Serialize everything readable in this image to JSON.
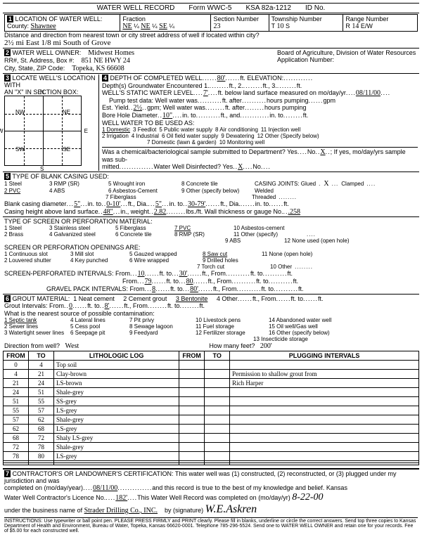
{
  "header": {
    "title": "WATER WELL RECORD",
    "form": "Form WWC-5",
    "ksa": "KSA 82a-1212",
    "idno": "ID No."
  },
  "loc": {
    "label": "LOCATION OF WATER WELL:",
    "county_lbl": "County:",
    "county": "Shawnee",
    "fraction": "Fraction",
    "f1": "NE",
    "f2": "¼",
    "f3": "NE",
    "f4": "¼",
    "f5": "SE",
    "f6": "¼",
    "sec_lbl": "Section Number",
    "sec": "23",
    "twp_lbl": "Township Number",
    "twp_t": "T",
    "twp": "10",
    "twp_s": "S",
    "rng_lbl": "Range Number",
    "rng_r": "R",
    "rng": "14",
    "rng_ew": "E/W",
    "dist_lbl": "Distance and direction from nearest town or city street address of well if located within city?",
    "dist": "2½ mi East 1/8 mi South of Grove"
  },
  "owner": {
    "label": "WATER WELL OWNER:",
    "name": "Midwest Homes",
    "addr_lbl": "RR#, St. Address, Box #:",
    "addr": "851 NE HWY 24",
    "city_lbl": "City, State, ZIP Code:",
    "city": "Topeka, KS 66608",
    "board": "Board of Agriculture, Division of Water Resources",
    "appno": "Application Number:"
  },
  "locate": {
    "label": "LOCATE WELL'S LOCATION WITH",
    "sub": "AN \"X\" IN SECTION BOX:",
    "n": "N",
    "s": "S",
    "e": "E",
    "w": "W",
    "nw": "NW",
    "ne": "NE",
    "sw": "SW",
    "se": "SE",
    "mile": "1 Mile"
  },
  "depth": {
    "label": "DEPTH OF COMPLETED WELL",
    "val": "80'",
    "elev": "ELEVATION:",
    "enc": "Depth(s) Groundwater Encountered",
    "d1": "1.",
    "d2": "2.",
    "d3": "3.",
    "swl": "WELL'S STATIC WATER LEVEL",
    "swl_v": "7'",
    "swl_t": "ft. below land surface measured on mo/day/yr",
    "swl_d": "08/11/00",
    "pump": "Pump test data: Well water was",
    "hrs": "hours pumping",
    "gpm": "gpm",
    "est": "Est. Yield",
    "est_v": "2½",
    "est_u": "gpm; Well water was",
    "bore": "Bore Hole Diameter",
    "bore_v": "10\"",
    "into": "in. to",
    "use": "WELL WATER TO BE USED AS:",
    "u1": "1 Domestic",
    "u2": "2 Irrigation",
    "u3": "3 Feedlot",
    "u4": "4 Industrial",
    "u5": "5 Public water supply",
    "u6": "6 Oil field water supply",
    "u7": "7 Domestic (lawn & garden)",
    "u8": "8 Air conditioning",
    "u9": "9 Dewatering",
    "u10": "10 Monitoring well",
    "u11": "11 Injection well",
    "u12": "12 Other (Specify below)",
    "chem": "Was a chemical/bacteriological sample submitted to Department? Yes",
    "no": "No",
    "x": "X",
    "ifyes": "; If yes, mo/day/yrs sample was sub-",
    "mitted": "mitted",
    "disinfect": "Water Well Disinfected? Yes",
    "dx": "X",
    "dno": "No"
  },
  "casing": {
    "label": "TYPE OF BLANK CASING USED:",
    "c1": "1 Steel",
    "c2": "2 PVC",
    "c3": "3 RMP (SR)",
    "c4": "4 ABS",
    "c5": "5 Wrought iron",
    "c6": "6 Asbestos-Cement",
    "c7": "7 Fiberglass",
    "c8": "8 Concrete tile",
    "c9": "9 Other (specify below)",
    "joints": "CASING JOINTS: Glued",
    "jx": "X",
    "clamped": "Clamped",
    "welded": "Welded",
    "threaded": "Threaded",
    "dia": "Blank casing diameter",
    "dia_v": "5\"",
    "into": "in. to",
    "to1": "0-10'",
    "ftdia": "ft., Dia.",
    "d2": "5\"",
    "to2": "30-79'",
    "height": "Casing height above land surface",
    "h_v": "48\"",
    "wt": "in., weight",
    "wt_v": "2.82",
    "lbs": "lbs./ft. Wall thickness or gauge No.",
    "gauge": ".258"
  },
  "screen": {
    "label": "TYPE OF SCREEN OR PERFORATION MATERIAL:",
    "s1": "1 Steel",
    "s2": "2 Brass",
    "s3": "3 Stainless steel",
    "s4": "4 Galvanized steel",
    "s5": "5 Fiberglass",
    "s6": "6 Concrete tile",
    "s7": "7 PVC",
    "s8": "8 RMP (SR)",
    "s9": "9 ABS",
    "s10": "10 Asbestos-cement",
    "s11": "11 Other (specify)",
    "s12": "12 None used (open hole)",
    "open": "SCREEN OR PERFORATION OPENINGS ARE:",
    "o1": "1 Continuous slot",
    "o2": "2 Louvered shutter",
    "o3": "3 Mill slot",
    "o4": "4 Key punched",
    "o5": "5 Gauzed wrapped",
    "o6": "6 Wire wrapped",
    "o7": "7 Torch cut",
    "o8": "8 Saw cut",
    "o9": "9 Drilled holes",
    "o10": "10 Other",
    "o11": "11 None (open hole)",
    "spi": "SCREEN-PERFORATED INTERVALS: From",
    "f1": "10",
    "t1": "30'",
    "f2": "79",
    "t2": "80",
    "gpi": "GRAVEL PACK INTERVALS: From",
    "gf1": "8",
    "gt1": "80'"
  },
  "grout": {
    "label": "GROUT MATERIAL:",
    "g1": "1 Neat cement",
    "g2": "2 Cement grout",
    "g3": "3 Bentonite",
    "g4": "4 Other",
    "int": "Grout Intervals: From",
    "gf": "0",
    "gt": "8'",
    "contam": "What is the nearest source of possible contamination:",
    "c1": "1 Septic tank",
    "c2": "2 Sewer lines",
    "c3": "3 Watertight sewer lines",
    "c4": "4 Lateral lines",
    "c5": "5 Cess pool",
    "c6": "6 Seepage pit",
    "c7": "7 Pit privy",
    "c8": "8 Sewage lagoon",
    "c9": "9 Feedyard",
    "c10": "10 Livestock pens",
    "c11": "11 Fuel storage",
    "c12": "12 Fertilizer storage",
    "c13": "13 Insecticide storage",
    "c14": "14 Abandoned water well",
    "c15": "15 Oil well/Gas well",
    "c16": "16 Other (specify below)",
    "dir": "Direction from well?",
    "dir_v": "West",
    "feet": "How many feet?",
    "feet_v": "200'"
  },
  "log": {
    "from": "FROM",
    "to": "TO",
    "lith": "LITHOLOGIC LOG",
    "plug": "PLUGGING INTERVALS",
    "rows": [
      {
        "f": "0",
        "t": "4",
        "l": "Top soil",
        "p": ""
      },
      {
        "f": "4",
        "t": "21",
        "l": "Clay-brown",
        "p": "Permission to shallow grout from"
      },
      {
        "f": "21",
        "t": "24",
        "l": "LS-brown",
        "p": "Rich Harper"
      },
      {
        "f": "24",
        "t": "51",
        "l": "Shale-grey",
        "p": ""
      },
      {
        "f": "51",
        "t": "55",
        "l": "SS-grey",
        "p": ""
      },
      {
        "f": "55",
        "t": "57",
        "l": "LS-grey",
        "p": ""
      },
      {
        "f": "57",
        "t": "62",
        "l": "Shale-grey",
        "p": ""
      },
      {
        "f": "62",
        "t": "68",
        "l": "LS-grey",
        "p": ""
      },
      {
        "f": "68",
        "t": "72",
        "l": "Shaly LS-grey",
        "p": ""
      },
      {
        "f": "72",
        "t": "78",
        "l": "Shale-grey",
        "p": ""
      },
      {
        "f": "78",
        "t": "80",
        "l": "LS-grey",
        "p": ""
      },
      {
        "f": "",
        "t": "",
        "l": "",
        "p": ""
      },
      {
        "f": "",
        "t": "",
        "l": "",
        "p": ""
      }
    ]
  },
  "cert": {
    "label": "CONTRACTOR'S OR LANDOWNER'S CERTIFICATION: This water well was (1) constructed, (2) reconstructed, or (3) plugged under my jurisdiction and was",
    "comp": "completed on (mo/day/year)",
    "comp_v": "08/11/00",
    "rest": "and this record is true to the best of my knowledge and belief. Kansas",
    "lic": "Water Well Contractor's Licence No.",
    "lic_v": "182'",
    "rec": "This Water Well Record was completed on (mo/day/yr)",
    "rec_v": "8-22-00",
    "bus": "under the business name of",
    "bus_v": "Strader Drilling Co., INC.",
    "sig": "by (signature)",
    "instr": "INSTRUCTIONS: Use typewriter or ball point pen. PLEASE PRESS FIRMLY and PRINT clearly. Please fill in blanks, underline or circle the correct answers. Send top three copies to Kansas Department of Health and Environment, Bureau of Water, Topeka, Kansas 66620-0001. Telephone 785-296-5524. Send one to WATER WELL OWNER and retain one for your records. Fee of $5.00 for each constructed well."
  }
}
